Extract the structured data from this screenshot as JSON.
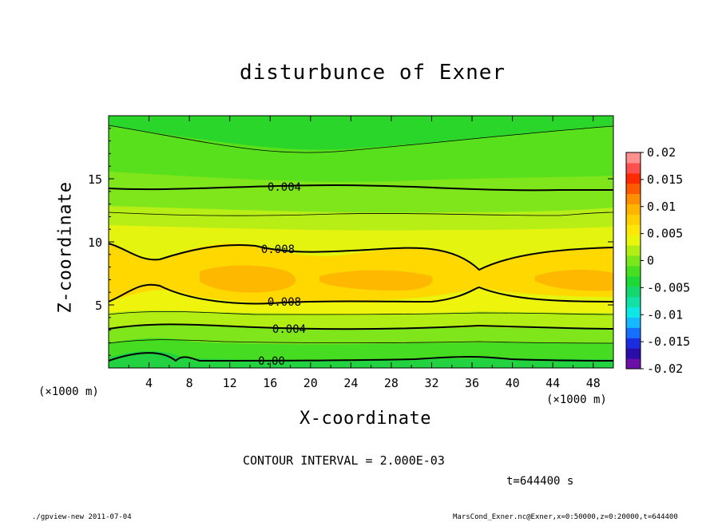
{
  "chart_data": {
    "type": "heatmap",
    "title": "disturbunce of Exner",
    "xlabel": "X-coordinate",
    "ylabel": "Z-coordinate",
    "x_unit_label": "(×1000 m)",
    "x_ticks": [
      4,
      8,
      12,
      16,
      20,
      24,
      28,
      32,
      36,
      40,
      44,
      48
    ],
    "y_ticks": [
      5,
      10,
      15
    ],
    "xlim": [
      0,
      50
    ],
    "ylim": [
      0,
      20
    ],
    "colorbar": {
      "ticks": [
        "0.02",
        "0.015",
        "0.01",
        "0.005",
        "0",
        "-0.005",
        "-0.01",
        "-0.015",
        "-0.02"
      ],
      "range": [
        -0.02,
        0.02
      ],
      "colors": [
        "#6a0fa8",
        "#2a0ca8",
        "#1a2ee0",
        "#1670ff",
        "#16b8ff",
        "#0fe6e6",
        "#12e0a4",
        "#16d670",
        "#1ed838",
        "#46e020",
        "#7ae61c",
        "#b2ee14",
        "#e8f60c",
        "#ffe60a",
        "#ffd000",
        "#ffb400",
        "#ff8e00",
        "#ff5a00",
        "#ff2a00",
        "#ff5050",
        "#ff9090"
      ]
    },
    "contour_labels": [
      "0.004",
      "0.008",
      "0.008",
      "0.004",
      "0.00"
    ],
    "contour_interval": "CONTOUR INTERVAL = 2.000E-03",
    "time": "t=644400 s"
  },
  "footer": {
    "left": "./gpview-new   2011-07-04",
    "right": "MarsCond_Exner.nc@Exner,x=0:50000,z=0:20000,t=644400"
  }
}
